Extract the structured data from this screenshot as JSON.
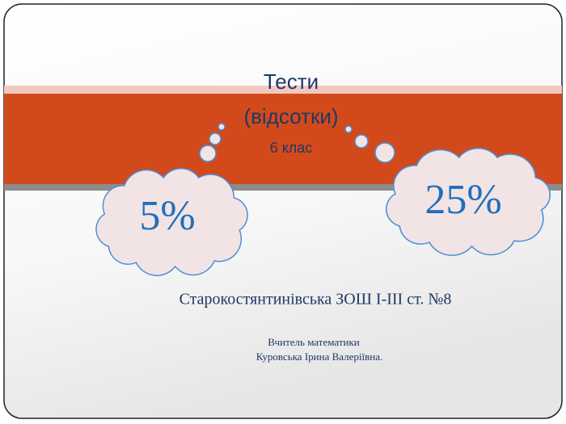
{
  "title": {
    "line1": "Тести",
    "line2": "(відсотки)",
    "grade": "6 клас"
  },
  "clouds": {
    "left": "5%",
    "right": "25%"
  },
  "school": "Старокостянтинівська ЗОШ І-ІІІ ст. №8",
  "teacher": {
    "role": "Вчитель математики",
    "name": "Куровська Ірина Валеріївна."
  }
}
